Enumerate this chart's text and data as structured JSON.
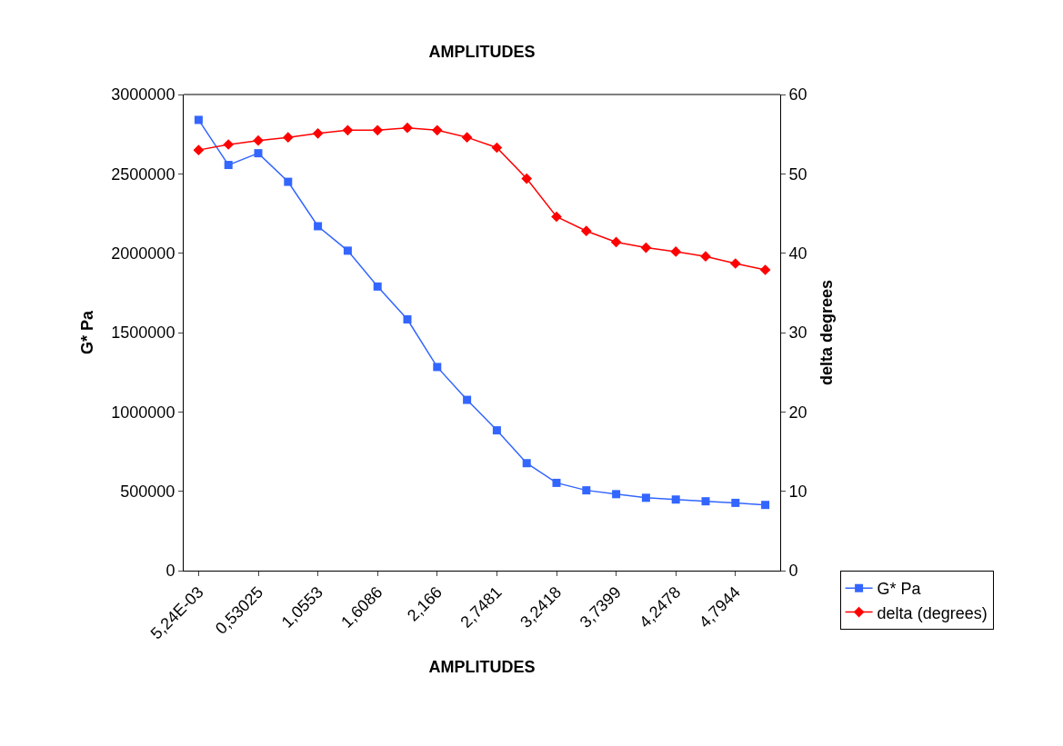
{
  "chart_data": {
    "type": "line",
    "title": "AMPLITUDES",
    "xlabel": "AMPLITUDES",
    "ylabel": "G* Pa",
    "y2label": "delta degrees",
    "categories": [
      "5,24E-03",
      null,
      "0,53025",
      null,
      "1,0553",
      null,
      "1,6086",
      null,
      "2,166",
      null,
      "2,7481",
      null,
      "3,2418",
      null,
      "3,7399",
      null,
      "4,2478",
      null,
      "4,7944",
      null
    ],
    "series": [
      {
        "name": "G* Pa",
        "color": "#3366ff",
        "marker": "square",
        "values": [
          2840000,
          2556000,
          2630000,
          2450000,
          2170000,
          2016000,
          1790000,
          1583000,
          1283000,
          1076000,
          884000,
          677000,
          553000,
          506000,
          482000,
          459000,
          448000,
          437000,
          427000,
          414000
        ]
      },
      {
        "name": "delta (degrees)",
        "color": "#ff0000",
        "marker": "diamond",
        "axis": "y2",
        "values": [
          53.0,
          53.7,
          54.2,
          54.6,
          55.1,
          55.5,
          55.5,
          55.8,
          55.5,
          54.6,
          53.3,
          49.4,
          44.6,
          42.8,
          41.4,
          40.7,
          40.2,
          39.6,
          38.7,
          37.9
        ]
      }
    ],
    "ylim": [
      0,
      3000000
    ],
    "yticks": [
      0,
      500000,
      1000000,
      1500000,
      2000000,
      2500000,
      3000000
    ],
    "y2lim": [
      0,
      60
    ],
    "y2ticks": [
      0,
      10,
      20,
      30,
      40,
      50,
      60
    ],
    "legend": "right",
    "line_style": "solid"
  }
}
